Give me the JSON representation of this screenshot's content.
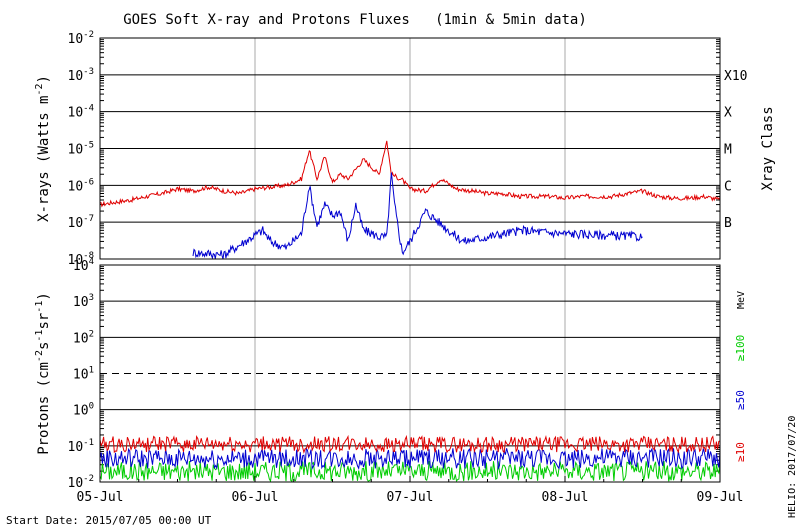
{
  "chart_data": {
    "type": "line",
    "title": "GOES Soft X-ray and Protons Fluxes   (1min & 5min data)",
    "x_ticks": [
      "05-Jul",
      "06-Jul",
      "07-Jul",
      "08-Jul",
      "09-Jul"
    ],
    "start_date": "Start Date: 2015/07/05 00:00 UT",
    "credit": "HELIO: 2017/07/20",
    "xray_panel": {
      "ylabel": "X-rays (Watts m",
      "ylabel_sup": "-2",
      "ylabel_end": ")",
      "y_ticks": [
        {
          "base": "10",
          "exp": "-2",
          "value": 0.01
        },
        {
          "base": "10",
          "exp": "-3",
          "value": 0.001
        },
        {
          "base": "10",
          "exp": "-4",
          "value": 0.0001
        },
        {
          "base": "10",
          "exp": "-5",
          "value": 1e-05
        },
        {
          "base": "10",
          "exp": "-6",
          "value": 1e-06
        },
        {
          "base": "10",
          "exp": "-7",
          "value": 1e-07
        },
        {
          "base": "10",
          "exp": "-8",
          "value": 1e-08
        }
      ],
      "ylim": [
        1e-08,
        0.01
      ],
      "log_scale": true,
      "class_title": "Xray Class",
      "classes": [
        {
          "label": "X10",
          "value": 0.001
        },
        {
          "label": "X",
          "value": 0.0001
        },
        {
          "label": "M",
          "value": 1e-05
        },
        {
          "label": "C",
          "value": 1e-06
        },
        {
          "label": "B",
          "value": 1e-07
        }
      ],
      "series": [
        {
          "color": "#e00000",
          "x": [
            0,
            0.1,
            0.2,
            0.3,
            0.4,
            0.5,
            0.6,
            0.7,
            0.8,
            0.9,
            1.0,
            1.1,
            1.2,
            1.3,
            1.35,
            1.4,
            1.45,
            1.5,
            1.55,
            1.6,
            1.7,
            1.8,
            1.85,
            1.88,
            1.9,
            1.95,
            2.0,
            2.1,
            2.2,
            2.3,
            2.4,
            2.5,
            2.6,
            2.7,
            2.8,
            2.9,
            3.0,
            3.1,
            3.2,
            3.3,
            3.4,
            3.5,
            3.6,
            3.7,
            3.8,
            3.9,
            4.0
          ],
          "y": [
            3e-07,
            3.5e-07,
            4e-07,
            5e-07,
            6e-07,
            8e-07,
            7e-07,
            9e-07,
            7e-07,
            6e-07,
            8e-07,
            9e-07,
            1e-06,
            1.5e-06,
            9e-06,
            1.5e-06,
            6e-06,
            1.2e-06,
            2e-06,
            1.5e-06,
            5e-06,
            2e-06,
            1.6e-05,
            2e-06,
            1.8e-06,
            1.4e-06,
            8e-07,
            7e-07,
            1.5e-06,
            8e-07,
            7e-07,
            6e-07,
            6e-07,
            5e-07,
            5e-07,
            5e-07,
            4.5e-07,
            5e-07,
            5e-07,
            5e-07,
            6e-07,
            7e-07,
            5e-07,
            4.5e-07,
            4.5e-07,
            5e-07,
            4e-07
          ]
        },
        {
          "color": "#0000d0",
          "x": [
            0.6,
            0.8,
            1.05,
            1.1,
            1.2,
            1.3,
            1.35,
            1.4,
            1.45,
            1.5,
            1.55,
            1.6,
            1.65,
            1.7,
            1.75,
            1.8,
            1.85,
            1.88,
            1.9,
            1.95,
            2.0,
            2.1,
            2.3,
            2.35,
            2.72,
            2.95,
            3.5
          ],
          "y": [
            1.5e-08,
            1.3e-08,
            6e-08,
            3e-08,
            2e-08,
            5e-08,
            1e-06,
            8e-08,
            3e-07,
            1.5e-07,
            2e-07,
            3e-08,
            3e-07,
            6e-08,
            5e-08,
            4e-08,
            4e-08,
            2e-06,
            3e-07,
            1.5e-08,
            3e-08,
            2e-07,
            4e-08,
            3e-08,
            6e-08,
            5e-08,
            4e-08
          ]
        }
      ]
    },
    "proton_panel": {
      "ylabel_parts": [
        "Protons (cm",
        "-2",
        "s",
        "-1",
        "sr",
        "-1",
        ")"
      ],
      "y_ticks": [
        {
          "base": "10",
          "exp": "4",
          "value": 10000
        },
        {
          "base": "10",
          "exp": "3",
          "value": 1000
        },
        {
          "base": "10",
          "exp": "2",
          "value": 100
        },
        {
          "base": "10",
          "exp": "1",
          "value": 10
        },
        {
          "base": "10",
          "exp": "0",
          "value": 1
        },
        {
          "base": "10",
          "exp": "-1",
          "value": 0.1
        },
        {
          "base": "10",
          "exp": "-2",
          "value": 0.01
        }
      ],
      "ylim": [
        0.01,
        10000
      ],
      "log_scale": true,
      "threshold": 10,
      "unit": "MeV",
      "series": [
        {
          "name": "≥100",
          "color": "#00cc00",
          "mean": 0.02
        },
        {
          "name": "≥50",
          "color": "#0000d0",
          "mean": 0.045
        },
        {
          "name": "≥10",
          "color": "#e00000",
          "mean": 0.11
        }
      ]
    }
  }
}
